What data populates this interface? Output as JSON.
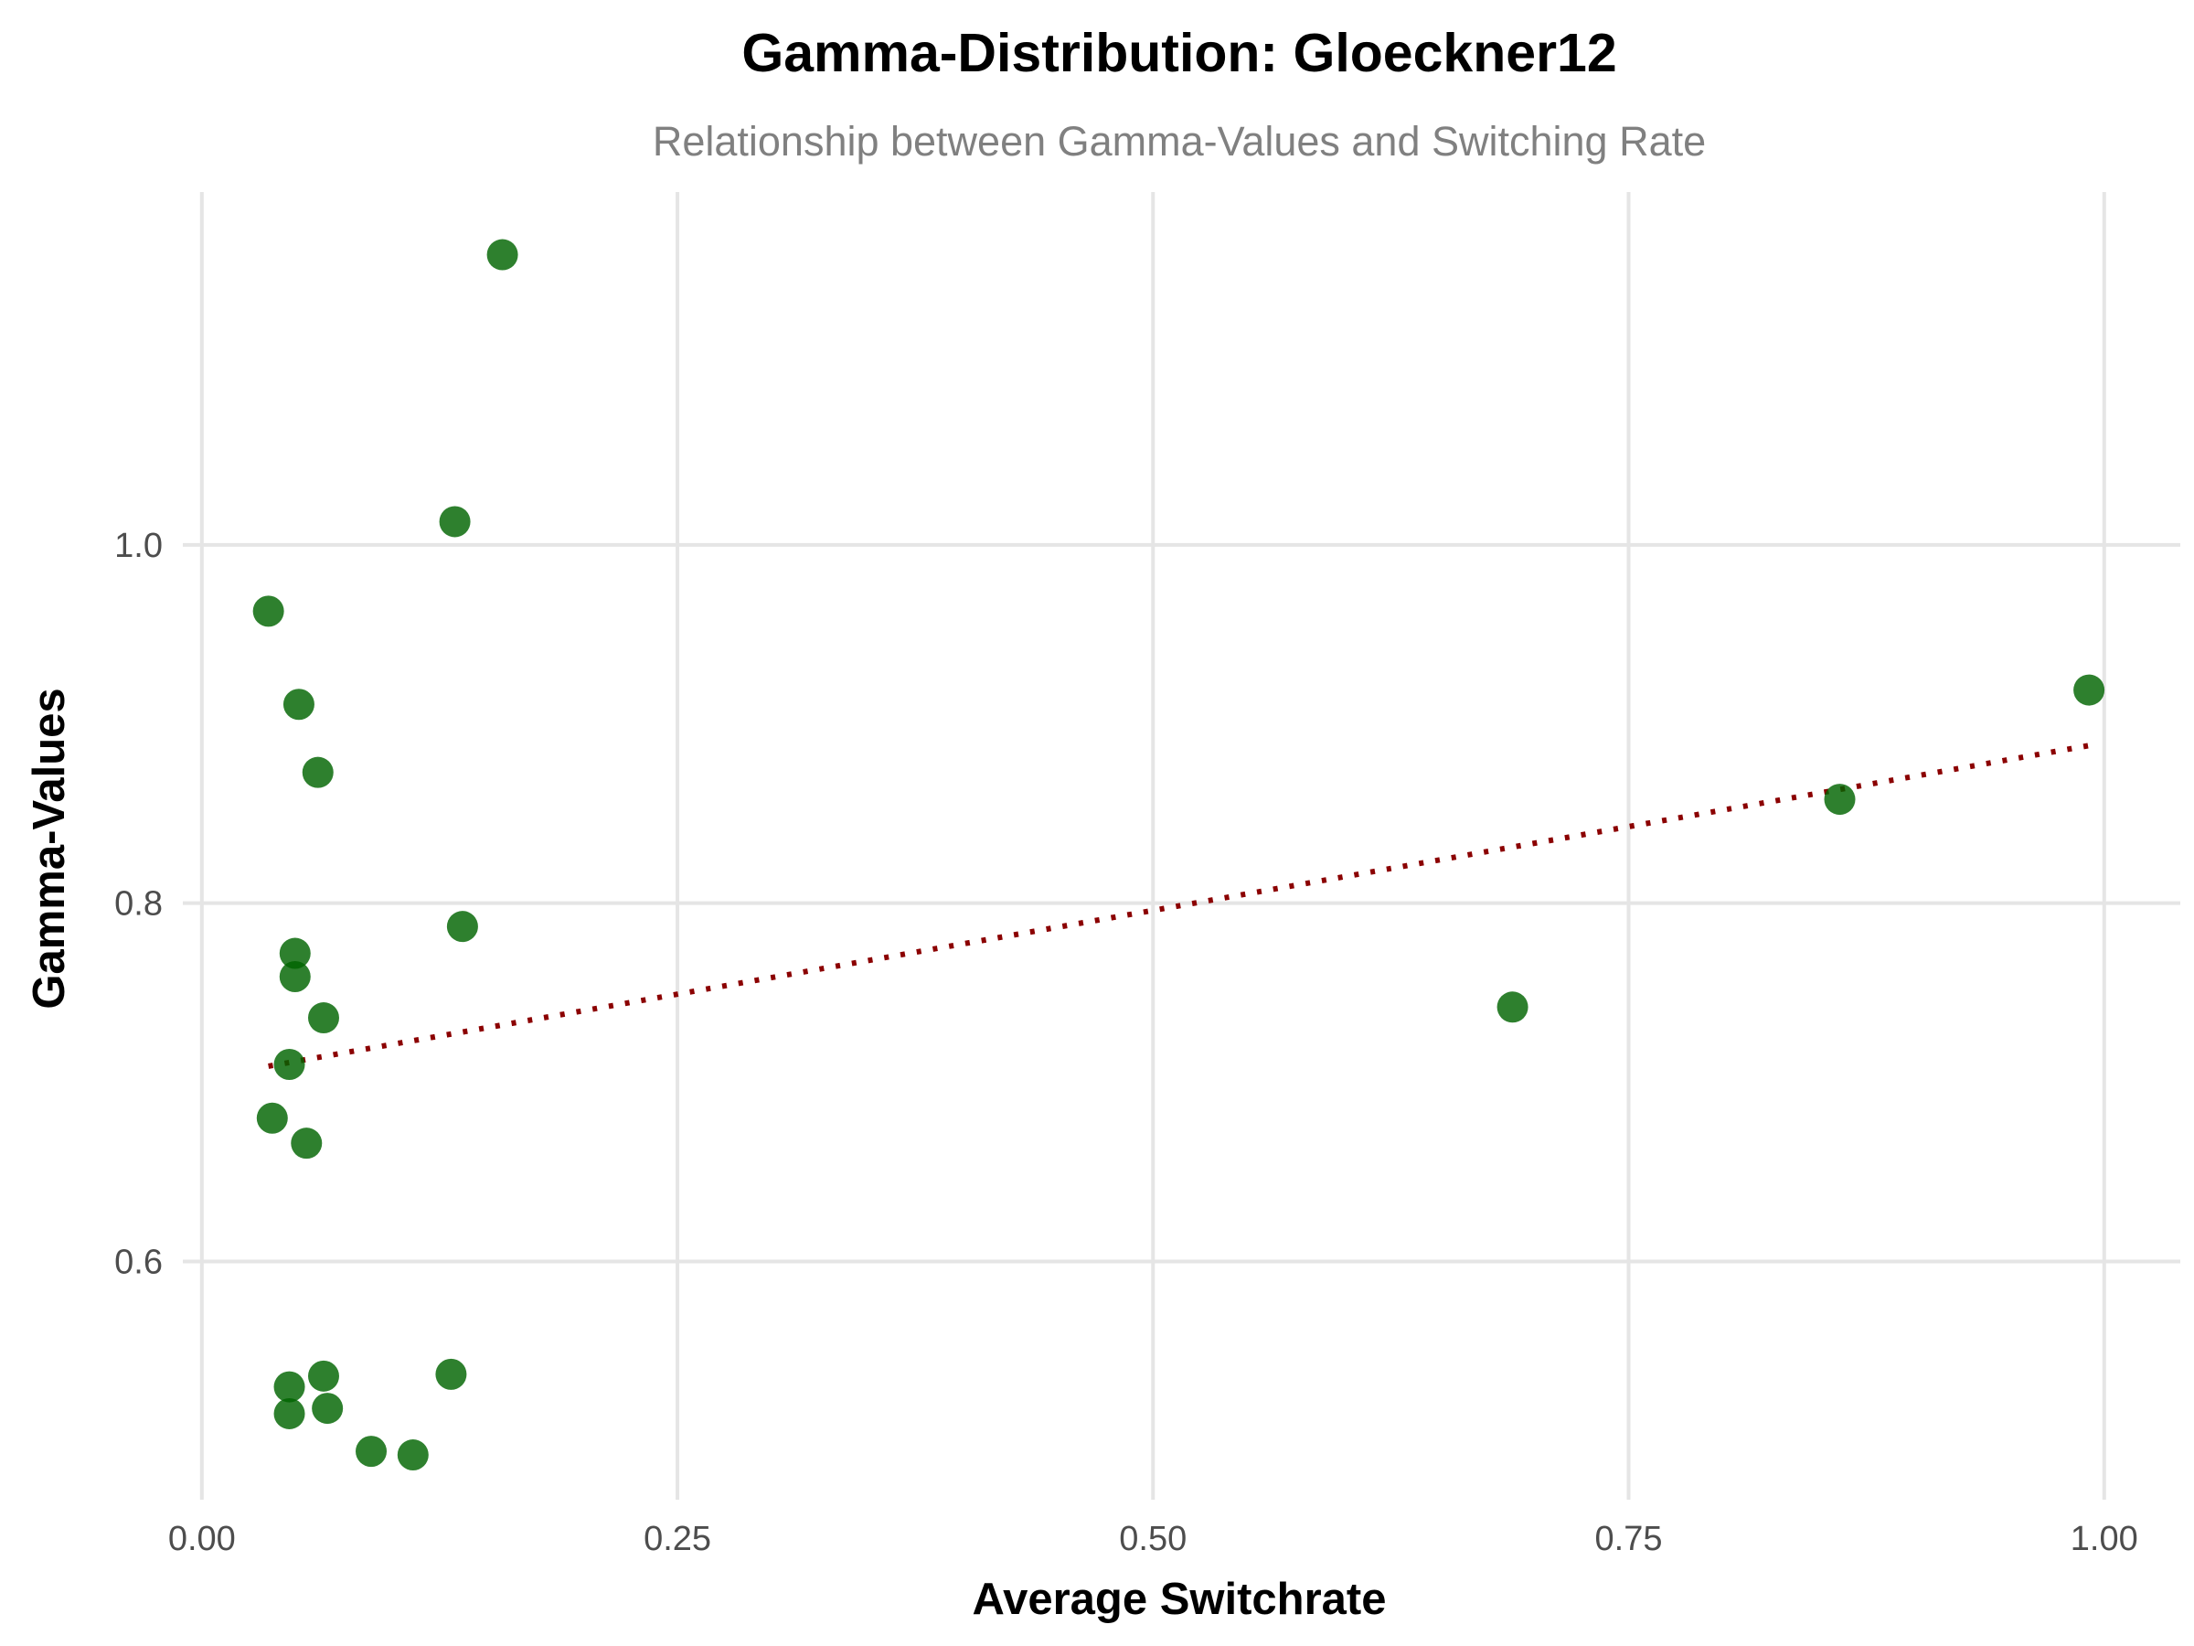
{
  "chart_data": {
    "type": "scatter",
    "title": "Gamma-Distribution: Gloeckner12",
    "subtitle": "Relationship between Gamma-Values and Switching Rate",
    "xlabel": "Average Switchrate",
    "ylabel": "Gamma-Values",
    "xlim": [
      -0.01,
      1.04
    ],
    "ylim": [
      0.467,
      1.197
    ],
    "x_ticks": [
      0.0,
      0.25,
      0.5,
      0.75,
      1.0
    ],
    "x_tick_labels": [
      "0.00",
      "0.25",
      "0.50",
      "0.75",
      "1.00"
    ],
    "y_ticks": [
      0.6,
      0.8,
      1.0
    ],
    "y_tick_labels": [
      "0.6",
      "0.8",
      "1.0"
    ],
    "grid": true,
    "legend": "none",
    "colors": {
      "points": "#006400",
      "trend": "#8b0000"
    },
    "points": [
      {
        "x": 0.158,
        "y": 1.162
      },
      {
        "x": 0.133,
        "y": 1.013
      },
      {
        "x": 0.035,
        "y": 0.963
      },
      {
        "x": 0.051,
        "y": 0.911
      },
      {
        "x": 0.061,
        "y": 0.873
      },
      {
        "x": 0.137,
        "y": 0.787
      },
      {
        "x": 0.049,
        "y": 0.772
      },
      {
        "x": 0.049,
        "y": 0.759
      },
      {
        "x": 0.064,
        "y": 0.736
      },
      {
        "x": 0.046,
        "y": 0.71
      },
      {
        "x": 0.037,
        "y": 0.68
      },
      {
        "x": 0.055,
        "y": 0.666
      },
      {
        "x": 0.064,
        "y": 0.536
      },
      {
        "x": 0.131,
        "y": 0.537
      },
      {
        "x": 0.046,
        "y": 0.53
      },
      {
        "x": 0.066,
        "y": 0.518
      },
      {
        "x": 0.046,
        "y": 0.515
      },
      {
        "x": 0.089,
        "y": 0.494
      },
      {
        "x": 0.111,
        "y": 0.492
      },
      {
        "x": 0.689,
        "y": 0.742
      },
      {
        "x": 0.861,
        "y": 0.858
      },
      {
        "x": 0.992,
        "y": 0.919
      }
    ],
    "trend_line": {
      "style": "dotted",
      "x": [
        0.035,
        0.992
      ],
      "y": [
        0.709,
        0.888
      ]
    }
  }
}
